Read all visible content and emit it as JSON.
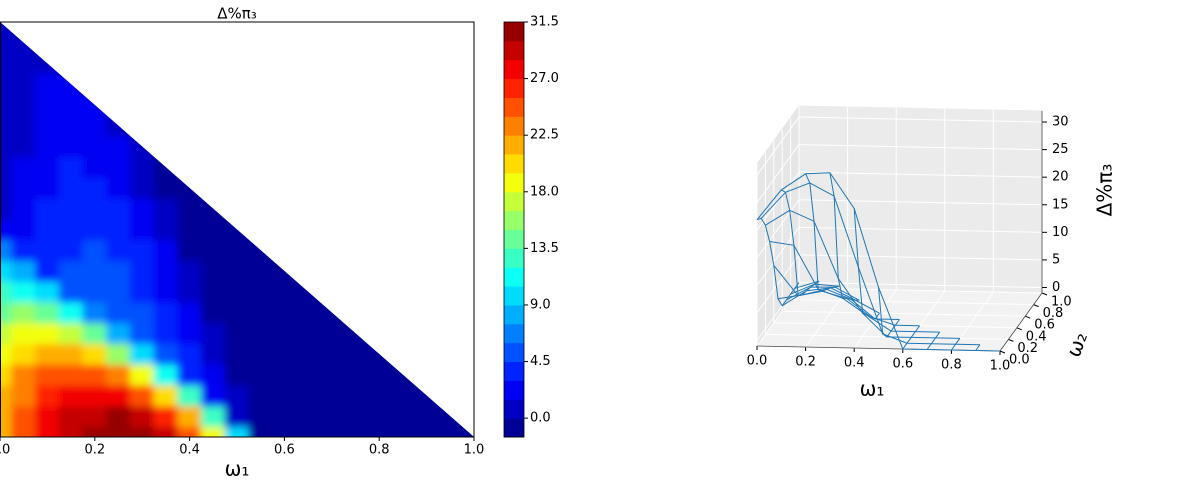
{
  "chart_data": [
    {
      "type": "contour",
      "title": "Δ%π₃",
      "x_label": "ω₁",
      "colormap": "jet",
      "n_levels": 22,
      "xlim": [
        0,
        1
      ],
      "ylim": [
        0,
        1
      ],
      "zlim": [
        -1.5,
        31.5
      ],
      "xticks": [
        {
          "value": 0,
          "label": "0.0"
        },
        0.2,
        0.4,
        0.6,
        0.8,
        {
          "value": 1,
          "label": "1.0"
        }
      ],
      "colorbar_ticks": [
        {
          "value": 0,
          "label": "0.0"
        },
        4.5,
        {
          "value": 9,
          "label": "9.0"
        },
        13.5,
        {
          "value": 18,
          "label": "18.0"
        },
        22.5,
        {
          "value": 27,
          "label": "27.0"
        },
        31.5
      ],
      "x": [
        0,
        0.05,
        0.1,
        0.15,
        0.2,
        0.25,
        0.3,
        0.35,
        0.4,
        0.45,
        0.5,
        0.55,
        0.6,
        0.65,
        0.7,
        0.75,
        0.8,
        0.85,
        0.9,
        0.95,
        1
      ],
      "y": [
        0,
        0.05,
        0.1,
        0.15,
        0.2,
        0.25,
        0.3,
        0.35,
        0.4,
        0.45,
        0.5,
        0.55,
        0.6,
        0.65,
        0.7,
        0.75,
        0.8,
        0.85,
        0.9,
        0.95,
        1
      ],
      "z": [
        [
          21.9,
          25.0,
          27.4,
          29.2,
          30.4,
          30.9,
          30.7,
          28.5,
          24.3,
          18.2,
          10.1,
          -1,
          -1,
          -1,
          -1,
          -1,
          -1,
          -1,
          -1,
          -1,
          -1
        ],
        [
          21.7,
          24.7,
          27.0,
          28.7,
          29.7,
          30.0,
          29.4,
          26.6,
          21.4,
          13.3,
          1.4,
          -1,
          -1,
          -1,
          -1,
          -1,
          -1,
          -1,
          -1,
          -1,
          null
        ],
        [
          21.1,
          23.9,
          25.9,
          27.2,
          27.7,
          27.2,
          25.4,
          20.8,
          12.6,
          2.7,
          0.6,
          -1,
          -1,
          -1,
          -1,
          -1,
          -1,
          -1,
          -1,
          null,
          null
        ],
        [
          20.1,
          22.6,
          24.1,
          24.8,
          24.4,
          22.5,
          18.7,
          11.1,
          3.9,
          2.0,
          -1,
          -1,
          -1,
          -1,
          -1,
          -1,
          -1,
          -1,
          null,
          null,
          null
        ],
        [
          18.8,
          20.7,
          21.6,
          21.3,
          19.7,
          16.0,
          9.4,
          4.7,
          3.2,
          1.2,
          -1,
          -1,
          -1,
          -1,
          -1,
          -1,
          -1,
          null,
          null,
          null,
          null
        ],
        [
          17.0,
          18.3,
          18.3,
          16.9,
          13.7,
          7.6,
          5.3,
          4.1,
          2.5,
          0.5,
          -1,
          -1,
          -1,
          -1,
          -1,
          -1,
          null,
          null,
          null,
          null,
          null
        ],
        [
          14.8,
          15.3,
          14.2,
          11.5,
          6.3,
          5.5,
          4.8,
          3.5,
          1.8,
          -1,
          -1,
          -1,
          -1,
          -1,
          -1,
          null,
          null,
          null,
          null,
          null,
          null
        ],
        [
          12.3,
          11.8,
          9.5,
          5.1,
          5.2,
          5.1,
          4.2,
          2.8,
          1.1,
          -1,
          -1,
          -1,
          -1,
          -1,
          null,
          null,
          null,
          null,
          null,
          null,
          null
        ],
        [
          9.4,
          7.7,
          4.0,
          4.5,
          4.9,
          4.6,
          3.7,
          2.2,
          0.4,
          -1,
          -1,
          -1,
          -1,
          null,
          null,
          null,
          null,
          null,
          null,
          null,
          null
        ],
        [
          6.0,
          3.1,
          3.3,
          4.2,
          4.5,
          4.1,
          3.1,
          1.5,
          -1,
          -1,
          -1,
          -1,
          null,
          null,
          null,
          null,
          null,
          null,
          null,
          null,
          null
        ],
        [
          2.3,
          1.7,
          3.1,
          4.0,
          4.2,
          3.6,
          2.5,
          0.9,
          -1,
          -1,
          -1,
          null,
          null,
          null,
          null,
          null,
          null,
          null,
          null,
          null,
          null
        ],
        [
          0,
          1.6,
          3.0,
          3.7,
          3.8,
          3.1,
          1.9,
          0.3,
          -1,
          -1,
          null,
          null,
          null,
          null,
          null,
          null,
          null,
          null,
          null,
          null,
          null
        ],
        [
          0,
          1.6,
          2.8,
          3.4,
          3.4,
          2.6,
          1.3,
          -1,
          -1,
          null,
          null,
          null,
          null,
          null,
          null,
          null,
          null,
          null,
          null,
          null,
          null
        ],
        [
          0,
          1.5,
          2.6,
          3.1,
          2.9,
          2.1,
          0.7,
          -1,
          null,
          null,
          null,
          null,
          null,
          null,
          null,
          null,
          null,
          null,
          null,
          null,
          null
        ],
        [
          0,
          1.4,
          2.4,
          2.8,
          2.5,
          1.5,
          0.2,
          null,
          null,
          null,
          null,
          null,
          null,
          null,
          null,
          null,
          null,
          null,
          null,
          null,
          null
        ],
        [
          0,
          1.3,
          2.2,
          2.4,
          2.0,
          1.0,
          null,
          null,
          null,
          null,
          null,
          null,
          null,
          null,
          null,
          null,
          null,
          null,
          null,
          null,
          null
        ],
        [
          0,
          1.1,
          1.9,
          2.1,
          1.6,
          null,
          null,
          null,
          null,
          null,
          null,
          null,
          null,
          null,
          null,
          null,
          null,
          null,
          null,
          null,
          null
        ],
        [
          0,
          1.0,
          1.7,
          1.7,
          null,
          null,
          null,
          null,
          null,
          null,
          null,
          null,
          null,
          null,
          null,
          null,
          null,
          null,
          null,
          null,
          null
        ],
        [
          0,
          0.9,
          1.4,
          null,
          null,
          null,
          null,
          null,
          null,
          null,
          null,
          null,
          null,
          null,
          null,
          null,
          null,
          null,
          null,
          null,
          null
        ],
        [
          0,
          0.7,
          null,
          null,
          null,
          null,
          null,
          null,
          null,
          null,
          null,
          null,
          null,
          null,
          null,
          null,
          null,
          null,
          null,
          null,
          null
        ],
        [
          0,
          null,
          null,
          null,
          null,
          null,
          null,
          null,
          null,
          null,
          null,
          null,
          null,
          null,
          null,
          null,
          null,
          null,
          null,
          null,
          null
        ]
      ]
    },
    {
      "type": "surface3d",
      "x_label": "ω₁",
      "y_label": "ω₂",
      "z_label": "Δ%π₃",
      "color": "#1f77b4",
      "xlim": [
        0,
        1
      ],
      "ylim": [
        0,
        1
      ],
      "zlim": [
        -1,
        32
      ],
      "xticks": [
        {
          "value": 0,
          "label": "0.0"
        },
        0.2,
        0.4,
        0.6,
        0.8,
        {
          "value": 1,
          "label": "1.0"
        }
      ],
      "yticks": [
        {
          "value": 0,
          "label": "0.0"
        },
        0.2,
        0.4,
        0.6,
        0.8,
        {
          "value": 1,
          "label": "1.0"
        }
      ],
      "zticks": [
        0,
        5,
        10,
        15,
        20,
        25,
        30
      ],
      "x": [
        0,
        0.1,
        0.2,
        0.3,
        0.4,
        0.5,
        0.6,
        0.7,
        0.8,
        0.9,
        1
      ],
      "y": [
        0,
        0.1,
        0.2,
        0.3,
        0.4,
        0.5,
        0.6,
        0.7,
        0.8,
        0.9,
        1
      ],
      "z": [
        [
          21.9,
          27.4,
          30.4,
          30.7,
          24.3,
          10.1,
          -1,
          -1,
          -1,
          -1,
          -1
        ],
        [
          21.1,
          25.9,
          27.7,
          25.4,
          12.6,
          0.6,
          -1,
          -1,
          -1,
          -1,
          null
        ],
        [
          18.8,
          21.6,
          19.7,
          9.4,
          3.2,
          -1,
          -1,
          -1,
          -1,
          null,
          null
        ],
        [
          14.8,
          14.2,
          6.3,
          4.8,
          1.8,
          -1,
          -1,
          -1,
          null,
          null,
          null
        ],
        [
          9.4,
          4.0,
          4.9,
          3.7,
          0.4,
          -1,
          -1,
          null,
          null,
          null,
          null
        ],
        [
          2.3,
          3.1,
          4.2,
          2.5,
          -1,
          -1,
          null,
          null,
          null,
          null,
          null
        ],
        [
          0,
          2.8,
          3.4,
          1.3,
          -1,
          null,
          null,
          null,
          null,
          null,
          null
        ],
        [
          0,
          2.4,
          2.5,
          0.2,
          null,
          null,
          null,
          null,
          null,
          null,
          null
        ],
        [
          0,
          1.9,
          1.6,
          null,
          null,
          null,
          null,
          null,
          null,
          null,
          null
        ],
        [
          0,
          1.4,
          null,
          null,
          null,
          null,
          null,
          null,
          null,
          null,
          null
        ],
        [
          0,
          null,
          null,
          null,
          null,
          null,
          null,
          null,
          null,
          null,
          null
        ]
      ]
    }
  ]
}
